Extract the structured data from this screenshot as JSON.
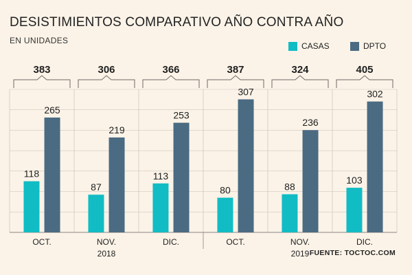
{
  "header": {
    "title": "DESISTIMIENTOS COMPARATIVO AÑO CONTRA AÑO",
    "subtitle": "EN UNIDADES"
  },
  "legend": [
    {
      "label": "CASAS",
      "color": "#11bcc4"
    },
    {
      "label": "DPTO",
      "color": "#4a6b82"
    }
  ],
  "source": "FUENTE: TOCTOC.COM",
  "colors": {
    "casas": "#11bcc4",
    "dpto": "#4a6b82",
    "gridline": "#cfc7bd",
    "background": "#fbf3e8"
  },
  "chart_data": {
    "type": "bar",
    "title": "DESISTIMIENTOS COMPARATIVO AÑO CONTRA AÑO",
    "subtitle": "EN UNIDADES",
    "categories": [
      "OCT.",
      "NOV.",
      "DIC.",
      "OCT.",
      "NOV.",
      "DIC."
    ],
    "years": [
      {
        "label": "2018",
        "start": 0,
        "end": 2
      },
      {
        "label": "2019",
        "start": 3,
        "end": 5
      }
    ],
    "series": [
      {
        "name": "CASAS",
        "values": [
          118,
          87,
          113,
          80,
          88,
          103
        ]
      },
      {
        "name": "DPTO",
        "values": [
          265,
          219,
          253,
          307,
          236,
          302
        ]
      }
    ],
    "totals": [
      "383",
      "306",
      "366",
      "387",
      "324",
      "405"
    ],
    "ylim": [
      0,
      330
    ],
    "legend_position": "top-right"
  }
}
